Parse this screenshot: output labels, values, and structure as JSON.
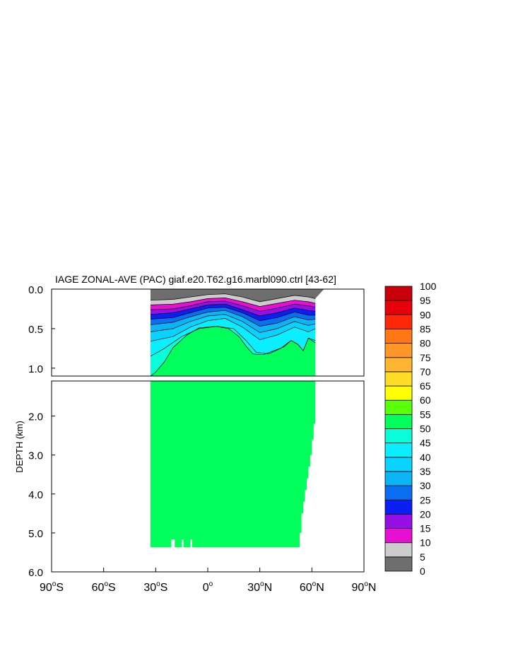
{
  "chart_data": {
    "type": "heatmap",
    "title": "IAGE ZONAL-AVE (PAC) giaf.e20.T62.g16.marbl090.ctrl [43-62]",
    "ylabel": "DEPTH (km)",
    "xlabel": "",
    "x_ticks": [
      {
        "value": -90,
        "label": "90°S",
        "num": "90",
        "sup": "o",
        "hemi": "S"
      },
      {
        "value": -60,
        "label": "60°S",
        "num": "60",
        "sup": "o",
        "hemi": "S"
      },
      {
        "value": -30,
        "label": "30°S",
        "num": "30",
        "sup": "o",
        "hemi": "S"
      },
      {
        "value": 0,
        "label": "0°",
        "num": "0",
        "sup": "o",
        "hemi": ""
      },
      {
        "value": 30,
        "label": "30°N",
        "num": "30",
        "sup": "o",
        "hemi": "N"
      },
      {
        "value": 60,
        "label": "60°N",
        "num": "60",
        "sup": "o",
        "hemi": "N"
      },
      {
        "value": 90,
        "label": "90°N",
        "num": "90",
        "sup": "o",
        "hemi": "N"
      }
    ],
    "upper_panel": {
      "ylim": [
        0,
        1.1
      ],
      "y_ticks": [
        {
          "value": 0,
          "label": "0.0"
        },
        {
          "value": 0.5,
          "label": "0.5"
        },
        {
          "value": 1.0,
          "label": "1.0"
        }
      ]
    },
    "lower_panel": {
      "ylim": [
        1.1,
        6.0
      ],
      "y_ticks": [
        {
          "value": 2,
          "label": "2.0"
        },
        {
          "value": 3,
          "label": "3.0"
        },
        {
          "value": 4,
          "label": "4.0"
        },
        {
          "value": 5,
          "label": "5.0"
        },
        {
          "value": 6,
          "label": "6.0"
        }
      ]
    },
    "colorbar": {
      "levels": [
        0,
        5,
        10,
        15,
        20,
        25,
        30,
        35,
        40,
        45,
        50,
        55,
        60,
        65,
        70,
        75,
        80,
        85,
        90,
        95,
        100
      ],
      "colors": [
        "#6e6e6e",
        "#cccccc",
        "#e60fd2",
        "#9610e6",
        "#0a1ef5",
        "#0a6ef0",
        "#0ab4f5",
        "#0ad2ff",
        "#0aeeff",
        "#0afdd8",
        "#00ff5a",
        "#5aff0a",
        "#ffff00",
        "#ffdc28",
        "#ffb432",
        "#ff9628",
        "#ff7814",
        "#ff280a",
        "#e6000a",
        "#c8000a"
      ]
    },
    "fill_colors": {
      "deep": "#00ff5a",
      "land": "#ffffff"
    },
    "ocean_extent": {
      "lat_min": -33,
      "lat_max": 62
    },
    "bottom_depth_profile": [
      [
        -33,
        5.37
      ],
      [
        -22,
        5.37
      ],
      [
        -21,
        5.17
      ],
      [
        -20,
        5.17
      ],
      [
        -19,
        5.37
      ],
      [
        -16,
        5.37
      ],
      [
        -15,
        5.17
      ],
      [
        -14,
        5.37
      ],
      [
        -11,
        5.37
      ],
      [
        -10,
        5.17
      ],
      [
        -9,
        5.37
      ],
      [
        52,
        5.37
      ],
      [
        53,
        5.0
      ],
      [
        54,
        4.5
      ],
      [
        55,
        4.2
      ],
      [
        56,
        3.9
      ],
      [
        57,
        3.6
      ],
      [
        58,
        3.3
      ],
      [
        59,
        3.0
      ],
      [
        60,
        2.6
      ],
      [
        61,
        2.2
      ],
      [
        62,
        1.2
      ]
    ],
    "upper_layers": [
      {
        "level": 0,
        "profile": [
          [
            -33,
            0.0
          ],
          [
            62,
            0.0
          ],
          [
            67,
            0.0
          ]
        ]
      },
      {
        "level": 5,
        "profile": [
          [
            -33,
            0.14
          ],
          [
            -20,
            0.13
          ],
          [
            -10,
            0.1
          ],
          [
            0,
            0.07
          ],
          [
            10,
            0.06
          ],
          [
            20,
            0.1
          ],
          [
            30,
            0.16
          ],
          [
            40,
            0.12
          ],
          [
            50,
            0.08
          ],
          [
            58,
            0.1
          ],
          [
            62,
            0.12
          ]
        ]
      },
      {
        "level": 10,
        "profile": [
          [
            -33,
            0.2
          ],
          [
            -20,
            0.19
          ],
          [
            -10,
            0.16
          ],
          [
            0,
            0.12
          ],
          [
            10,
            0.11
          ],
          [
            20,
            0.16
          ],
          [
            30,
            0.22
          ],
          [
            40,
            0.18
          ],
          [
            50,
            0.14
          ],
          [
            58,
            0.16
          ],
          [
            62,
            0.18
          ]
        ]
      },
      {
        "level": 15,
        "profile": [
          [
            -33,
            0.26
          ],
          [
            -20,
            0.25
          ],
          [
            -10,
            0.21
          ],
          [
            0,
            0.16
          ],
          [
            10,
            0.15
          ],
          [
            20,
            0.21
          ],
          [
            30,
            0.28
          ],
          [
            40,
            0.24
          ],
          [
            50,
            0.19
          ],
          [
            58,
            0.21
          ],
          [
            62,
            0.23
          ]
        ]
      },
      {
        "level": 20,
        "profile": [
          [
            -33,
            0.32
          ],
          [
            -20,
            0.3
          ],
          [
            -10,
            0.25
          ],
          [
            0,
            0.2
          ],
          [
            10,
            0.19
          ],
          [
            20,
            0.26
          ],
          [
            30,
            0.34
          ],
          [
            40,
            0.3
          ],
          [
            50,
            0.24
          ],
          [
            58,
            0.27
          ],
          [
            62,
            0.28
          ]
        ]
      },
      {
        "level": 25,
        "profile": [
          [
            -33,
            0.38
          ],
          [
            -20,
            0.36
          ],
          [
            -10,
            0.3
          ],
          [
            0,
            0.24
          ],
          [
            10,
            0.23
          ],
          [
            20,
            0.3
          ],
          [
            30,
            0.4
          ],
          [
            40,
            0.36
          ],
          [
            50,
            0.29
          ],
          [
            58,
            0.33
          ],
          [
            62,
            0.33
          ]
        ]
      },
      {
        "level": 30,
        "profile": [
          [
            -33,
            0.45
          ],
          [
            -20,
            0.42
          ],
          [
            -10,
            0.35
          ],
          [
            0,
            0.29
          ],
          [
            10,
            0.27
          ],
          [
            20,
            0.35
          ],
          [
            30,
            0.47
          ],
          [
            40,
            0.43
          ],
          [
            50,
            0.35
          ],
          [
            58,
            0.39
          ],
          [
            62,
            0.38
          ]
        ]
      },
      {
        "level": 35,
        "profile": [
          [
            -33,
            0.54
          ],
          [
            -20,
            0.5
          ],
          [
            -10,
            0.41
          ],
          [
            0,
            0.34
          ],
          [
            10,
            0.32
          ],
          [
            20,
            0.41
          ],
          [
            30,
            0.55
          ],
          [
            40,
            0.5
          ],
          [
            50,
            0.41
          ],
          [
            58,
            0.46
          ],
          [
            62,
            0.44
          ]
        ]
      },
      {
        "level": 40,
        "profile": [
          [
            -33,
            0.66
          ],
          [
            -20,
            0.6
          ],
          [
            -10,
            0.48
          ],
          [
            0,
            0.4
          ],
          [
            10,
            0.37
          ],
          [
            20,
            0.48
          ],
          [
            30,
            0.64
          ],
          [
            40,
            0.58
          ],
          [
            50,
            0.48
          ],
          [
            58,
            0.54
          ],
          [
            62,
            0.5
          ]
        ]
      },
      {
        "level": 45,
        "profile": [
          [
            -33,
            0.85
          ],
          [
            -25,
            0.75
          ],
          [
            -15,
            0.6
          ],
          [
            -5,
            0.5
          ],
          [
            5,
            0.47
          ],
          [
            15,
            0.5
          ],
          [
            22,
            0.65
          ],
          [
            28,
            0.8
          ],
          [
            35,
            0.82
          ],
          [
            42,
            0.75
          ],
          [
            48,
            0.65
          ],
          [
            52,
            0.7
          ],
          [
            55,
            0.78
          ],
          [
            58,
            0.62
          ],
          [
            62,
            0.65
          ]
        ]
      },
      {
        "level": 50,
        "profile": [
          [
            -33,
            1.1
          ],
          [
            -30,
            1.05
          ],
          [
            -25,
            0.92
          ],
          [
            -20,
            0.74
          ],
          [
            -12,
            0.58
          ],
          [
            -5,
            0.49
          ],
          [
            5,
            0.47
          ],
          [
            12,
            0.5
          ],
          [
            18,
            0.6
          ],
          [
            22,
            0.72
          ],
          [
            26,
            0.82
          ],
          [
            32,
            0.83
          ],
          [
            38,
            0.78
          ],
          [
            44,
            0.73
          ],
          [
            48,
            0.65
          ],
          [
            52,
            0.7
          ],
          [
            55,
            0.78
          ],
          [
            58,
            0.62
          ],
          [
            62,
            0.68
          ]
        ]
      }
    ]
  }
}
